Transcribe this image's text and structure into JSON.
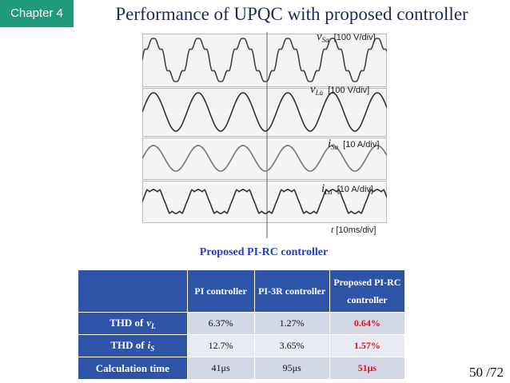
{
  "header": {
    "chapter": "Chapter 4",
    "title": "Performance of UPQC with proposed controller"
  },
  "figure": {
    "traces": [
      {
        "symbol": "v",
        "subscript": "Sa",
        "scale": "[100 V/div]"
      },
      {
        "symbol": "v",
        "subscript": "La",
        "scale": "[100 V/div]"
      },
      {
        "symbol": "i",
        "subscript": "Sa",
        "scale": "[10 A/div]"
      },
      {
        "symbol": "i",
        "subscript": "La",
        "scale": "[10 A/div]"
      }
    ],
    "time_axis": {
      "symbol": "t",
      "scale": "[10ms/div]"
    },
    "caption": "Proposed PI-RC controller"
  },
  "table": {
    "columns": [
      "PI controller",
      "PI-3R controller",
      "Proposed PI-RC controller"
    ],
    "rows": [
      {
        "label": {
          "prefix": "THD of",
          "symbol": "v",
          "subscript": "L"
        },
        "cells": [
          "6.37%",
          "1.27%",
          "0.64%"
        ]
      },
      {
        "label": {
          "prefix": "THD of",
          "symbol": "i",
          "subscript": "S"
        },
        "cells": [
          "12.7%",
          "3.65%",
          "1.57%"
        ]
      },
      {
        "label": {
          "prefix": "Calculation time"
        },
        "cells": [
          "41μs",
          "95μs",
          "51μs"
        ]
      }
    ]
  },
  "page": {
    "number": "50 /72"
  }
}
